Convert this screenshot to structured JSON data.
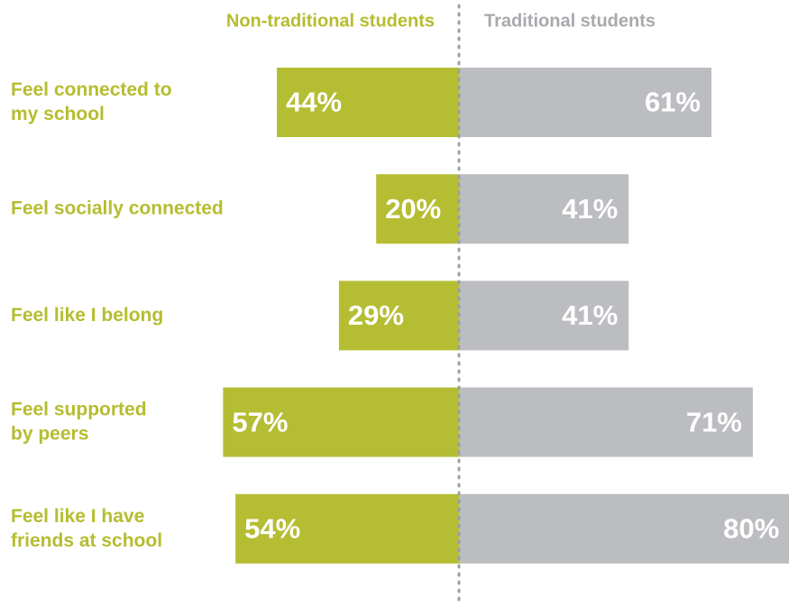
{
  "chart_data": {
    "type": "diverging-bar",
    "categories": [
      "Feel connected to\nmy school",
      "Feel socially connected",
      "Feel like I belong",
      "Feel supported\nby peers",
      "Feel like I have\nfriends at school"
    ],
    "series": [
      {
        "name": "Non-traditional students",
        "color": "#b5bd33",
        "values": [
          44,
          20,
          29,
          57,
          54
        ],
        "value_labels": [
          "44%",
          "20%",
          "29%",
          "57%",
          "54%"
        ]
      },
      {
        "name": "Traditional students",
        "color": "#bcbdc0",
        "values": [
          61,
          41,
          41,
          71,
          80
        ],
        "value_labels": [
          "61%",
          "41%",
          "41%",
          "71%",
          "80%"
        ]
      }
    ]
  }
}
